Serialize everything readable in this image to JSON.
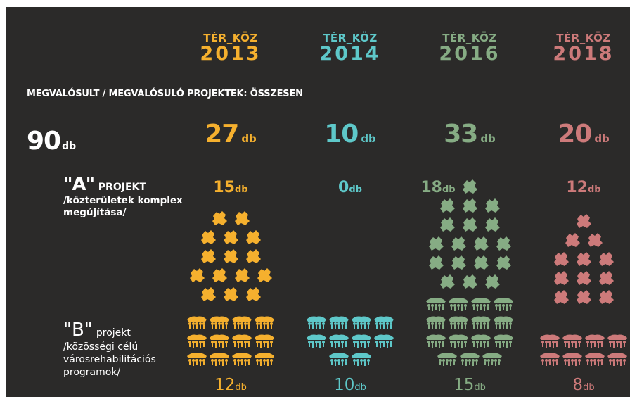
{
  "heading": "MEGVALÓSULT / MEGVALÓSULÓ PROJEKTEK: ÖSSZESEN",
  "total": {
    "value": "90",
    "unit": "db"
  },
  "project_a": {
    "code": "\"A\"",
    "keyword": "PROJEKT",
    "description": "/közterületek komplex megújítása/"
  },
  "project_b": {
    "code": "\"B\"",
    "keyword": "projekt",
    "description": "/közösségi célú városrehabilitációs programok/"
  },
  "chart_data": {
    "type": "pictogram",
    "unit": "db",
    "categories": [
      "TÉR_KÖZ 2013",
      "TÉR_KÖZ 2014",
      "TÉR_KÖZ 2016",
      "TÉR_KÖZ 2018"
    ],
    "years": [
      {
        "label": "TÉR_KÖZ",
        "year": "2013",
        "color": "#f5b02e",
        "total": "27",
        "a": "15",
        "b": "12",
        "a_count": 15,
        "b_count": 12
      },
      {
        "label": "TÉR_KÖZ",
        "year": "2014",
        "color": "#5ec8c9",
        "total": "10",
        "a": "0",
        "b": "10",
        "a_count": 0,
        "b_count": 10
      },
      {
        "label": "TÉR_KÖZ",
        "year": "2016",
        "color": "#86ac84",
        "total": "33",
        "a": "18",
        "b": "15",
        "a_count": 18,
        "b_count": 15
      },
      {
        "label": "TÉR_KÖZ",
        "year": "2018",
        "color": "#cd7a7a",
        "total": "20",
        "a": "12",
        "b": "8",
        "a_count": 12,
        "b_count": 8
      }
    ]
  }
}
